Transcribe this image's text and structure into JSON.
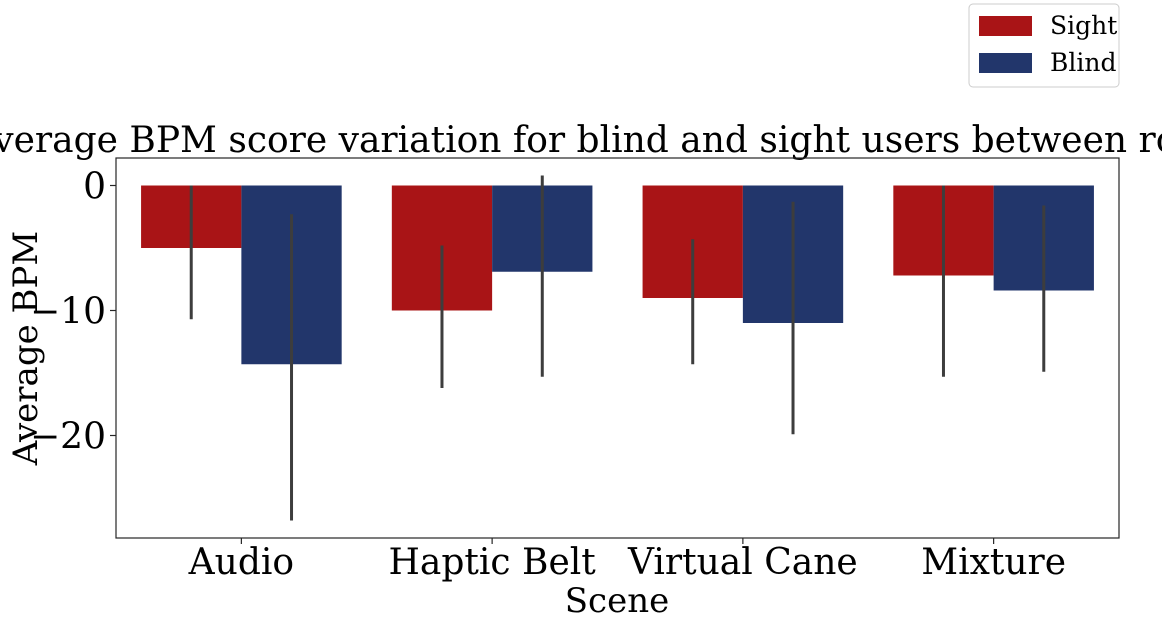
{
  "chart_data": {
    "type": "bar",
    "title": "Average BPM score variation for blind and sight users between rounds",
    "xlabel": "Scene",
    "ylabel": "Average BPM",
    "categories": [
      "Audio",
      "Haptic Belt",
      "Virtual Cane",
      "Mixture"
    ],
    "series": [
      {
        "name": "Sight",
        "color": "#a91416",
        "values": [
          -5.0,
          -10.0,
          -9.0,
          -7.2
        ],
        "error_low": [
          -10.7,
          -16.2,
          -14.3,
          -15.3
        ],
        "error_high": [
          0.0,
          -4.8,
          -4.3,
          0.0
        ]
      },
      {
        "name": "Blind",
        "color": "#22366b",
        "values": [
          -14.3,
          -6.9,
          -11.0,
          -8.4
        ],
        "error_low": [
          -26.8,
          -15.3,
          -19.9,
          -14.9
        ],
        "error_high": [
          -2.3,
          0.8,
          -1.3,
          -1.6
        ]
      }
    ],
    "ylim": [
      -28.2,
      2.2
    ],
    "yticks": [
      0,
      -10,
      -20
    ],
    "ytick_labels": [
      "0",
      "−10",
      "−20"
    ],
    "error_bar_color": "#3d3d3d",
    "grid": false,
    "legend_position": "top-right"
  }
}
